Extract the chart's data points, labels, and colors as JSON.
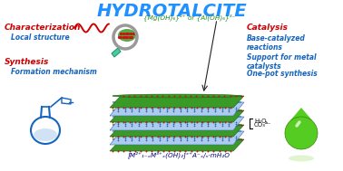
{
  "title": "HYDROTALCITE",
  "title_color": "#1E90FF",
  "title_fontsize": 14,
  "bg_color": "#FFFFFF",
  "left_heading1": "Characterization",
  "left_heading1_color": "#CC0000",
  "left_sub1": "Local structure",
  "left_sub1_color": "#1565C0",
  "left_heading2": "Synthesis",
  "left_heading2_color": "#CC0000",
  "left_sub2": "Formation mechanism",
  "left_sub2_color": "#1565C0",
  "right_heading1": "Catalysis",
  "right_heading1_color": "#CC0000",
  "right_sub1": "Base-catalyzed\nreactions",
  "right_sub1_color": "#1565C0",
  "right_sub2": "Support for metal\ncatalysts",
  "right_sub2_color": "#1565C0",
  "right_sub3": "One-pot synthesis",
  "right_sub3_color": "#1565C0",
  "center_top_label": "{Mg(OH)₆}²⁺ or {Al(OH)₆}³⁻",
  "center_top_color": "#228B22",
  "interlayer_label1": "H₂O,",
  "interlayer_label2": "CO₃²⁻",
  "interlayer_color": "#111111",
  "formula": "[M²⁺₁₋ₓM³⁺ₓ(OH)₂]ˣ⁺A⁻ₓ/ₙ·mH₂O",
  "formula_color": "#000080",
  "layer_green": "#3A9A28",
  "layer_green_dark": "#1A5C10",
  "layer_blue_fill": "#AACCEE",
  "layer_blue_edge": "#4466AA",
  "layer_red_dot": "#CC1111",
  "layer_blue_dot": "#3355BB"
}
